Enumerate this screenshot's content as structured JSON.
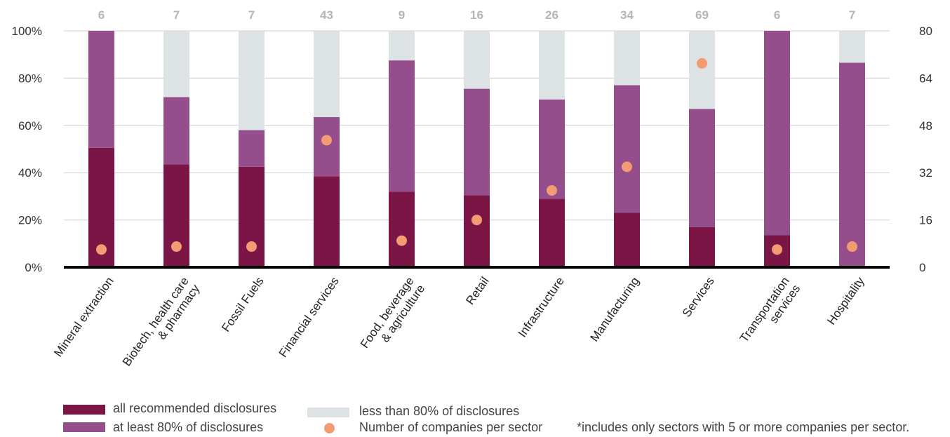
{
  "chart_data": {
    "type": "bar",
    "stacked": true,
    "categories": [
      "Mineral extraction",
      "Biotech, health care\n& pharmacy",
      "Fossil Fuels",
      "Financial services",
      "Food, beverage\n& agriculture",
      "Retail",
      "Infrastructure",
      "Manufacturing",
      "Services",
      "Transportation\nservices",
      "Hospitality"
    ],
    "series": [
      {
        "name": "all recommended disclosures",
        "color": "#7b1545",
        "values": [
          50.5,
          43.5,
          42.5,
          38.5,
          32,
          30.5,
          29,
          23,
          17,
          13.5,
          0.5
        ]
      },
      {
        "name": "at least 80% of disclosures",
        "color": "#954e8c",
        "values": [
          49.5,
          28.5,
          15.5,
          25,
          55.5,
          45,
          42,
          54,
          50,
          86.5,
          86
        ]
      },
      {
        "name": "less than 80% of disclosures",
        "color": "#dde3e4",
        "values": [
          0,
          28,
          42,
          36.5,
          12.5,
          24.5,
          29,
          23,
          33,
          0,
          13.5
        ]
      }
    ],
    "dots": {
      "name": "Number of companies per sector",
      "color": "#f39b72",
      "values": [
        6,
        7,
        7,
        43,
        9,
        16,
        26,
        34,
        69,
        6,
        7
      ]
    },
    "top_counts": [
      "6",
      "7",
      "7",
      "43",
      "9",
      "16",
      "26",
      "34",
      "69",
      "6",
      "7"
    ],
    "y_left": {
      "range": [
        0,
        100
      ],
      "ticks": [
        "0%",
        "20%",
        "40%",
        "60%",
        "80%",
        "100%"
      ]
    },
    "y_right": {
      "range": [
        0,
        80
      ],
      "ticks": [
        "0",
        "16",
        "32",
        "48",
        "64",
        "80"
      ]
    },
    "grid": true,
    "legend_position": "bottom-left",
    "footnote": "*includes only sectors with 5 or more companies per sector."
  },
  "legend": {
    "all": "all recommended disclosures",
    "atleast": "at least 80% of disclosures",
    "less": "less than 80% of disclosures",
    "dots": "Number of companies per sector",
    "footnote": "*includes only sectors with 5 or more companies per sector."
  }
}
